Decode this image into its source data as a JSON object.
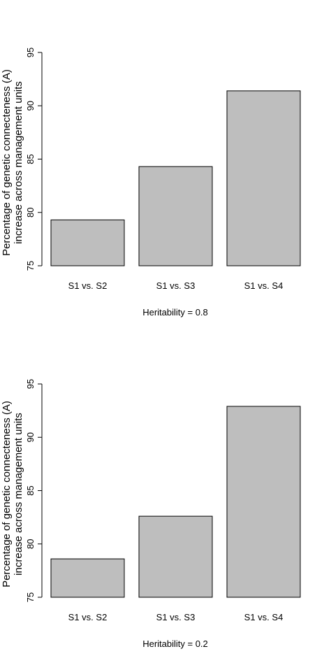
{
  "chart_data": [
    {
      "type": "bar",
      "categories": [
        "S1 vs. S2",
        "S1 vs. S3",
        "S1 vs. S4"
      ],
      "values": [
        79.3,
        84.3,
        91.4
      ],
      "xlabel": "Heritability = 0.8",
      "ylabel": [
        "Percentage of genetic connecteness (A)",
        "increase across management units"
      ],
      "ylim": [
        75,
        95
      ],
      "yticks": [
        75,
        80,
        85,
        90,
        95
      ],
      "bar_color": "#bebebe",
      "grid": false
    },
    {
      "type": "bar",
      "categories": [
        "S1 vs. S2",
        "S1 vs. S3",
        "S1 vs. S4"
      ],
      "values": [
        78.6,
        82.6,
        92.9
      ],
      "xlabel": "Heritability = 0.2",
      "ylabel": [
        "Percentage of genetic connecteness (A)",
        "increase across management units"
      ],
      "ylim": [
        75,
        95
      ],
      "yticks": [
        75,
        80,
        85,
        90,
        95
      ],
      "bar_color": "#bebebe",
      "grid": false
    }
  ]
}
